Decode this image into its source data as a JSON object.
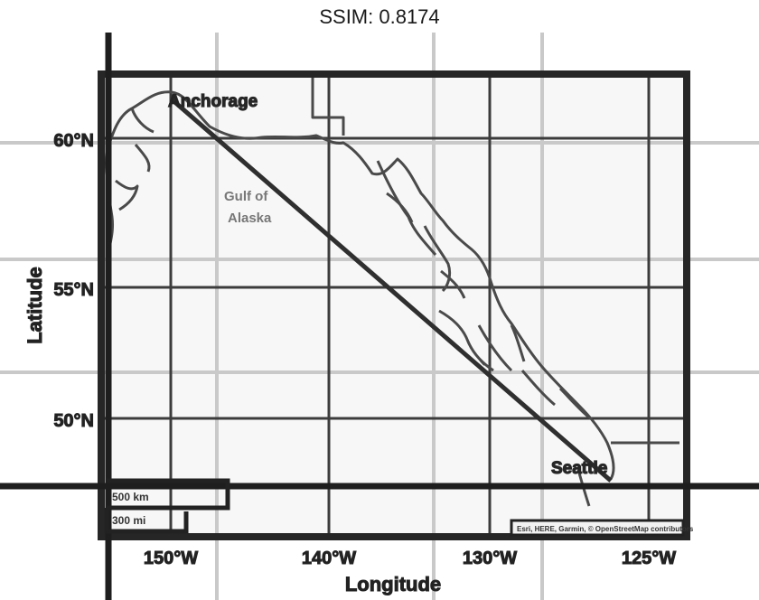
{
  "header": {
    "title": "SSIM: 0.8174"
  },
  "axes": {
    "xlabel": "Longitude",
    "ylabel": "Latitude",
    "x_ticks": [
      "150°W",
      "140°W",
      "130°W",
      "125°W"
    ],
    "y_ticks": [
      "60°N",
      "55°N",
      "50°N"
    ]
  },
  "places": {
    "anchorage": "Anchorage",
    "seattle": "Seattle",
    "gulf_line1": "Gulf of",
    "gulf_line2": "Alaska"
  },
  "scale_bar": {
    "km": "500 km",
    "mi": "300 mi"
  },
  "attribution": "Esri, HERE, Garmin, © OpenStreetMap contributors",
  "colors": {
    "frame": "#222222",
    "grid": "#444444",
    "grid_light": "#c8c8c8",
    "land_bg": "#f6f6f6"
  }
}
